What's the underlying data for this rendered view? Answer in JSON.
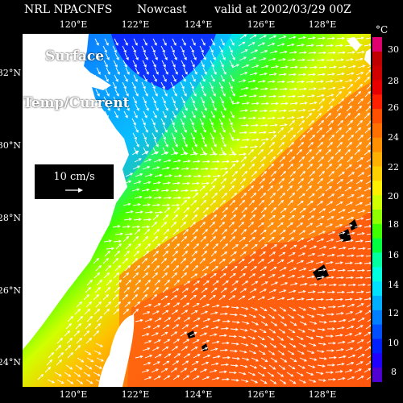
{
  "header": {
    "source": "NRL NPACNFS",
    "product": "Nowcast",
    "valid": "valid at 2002/03/29 00Z"
  },
  "labels": {
    "line1": "Surface",
    "line2": "Temp/Current",
    "scale": "10 cm/s"
  },
  "axes": {
    "lon_ticks": [
      "120°E",
      "122°E",
      "124°E",
      "126°E",
      "128°E"
    ],
    "lat_ticks": [
      "32°N",
      "30°N",
      "28°N",
      "26°N",
      "24°N"
    ]
  },
  "colorbar": {
    "unit": "°C",
    "range": [
      7,
      31
    ],
    "labels": [
      "30",
      "28",
      "26",
      "24",
      "22",
      "20",
      "18",
      "16",
      "14",
      "12",
      "10",
      "8"
    ],
    "colors": [
      "#e00070",
      "#c00000",
      "#d00000",
      "#e80000",
      "#ff2000",
      "#ff5000",
      "#ff7000",
      "#ff9000",
      "#ffb000",
      "#ffd000",
      "#fff000",
      "#d0ff00",
      "#90ff00",
      "#40ff00",
      "#00ff40",
      "#00ffa0",
      "#00ffe0",
      "#00e0ff",
      "#00b0ff",
      "#0080ff",
      "#0050ff",
      "#0020ff",
      "#2000ff",
      "#5000d0"
    ]
  },
  "colors": {
    "land": "#ffffff",
    "background": "#000000",
    "vector": "#ffffff"
  }
}
